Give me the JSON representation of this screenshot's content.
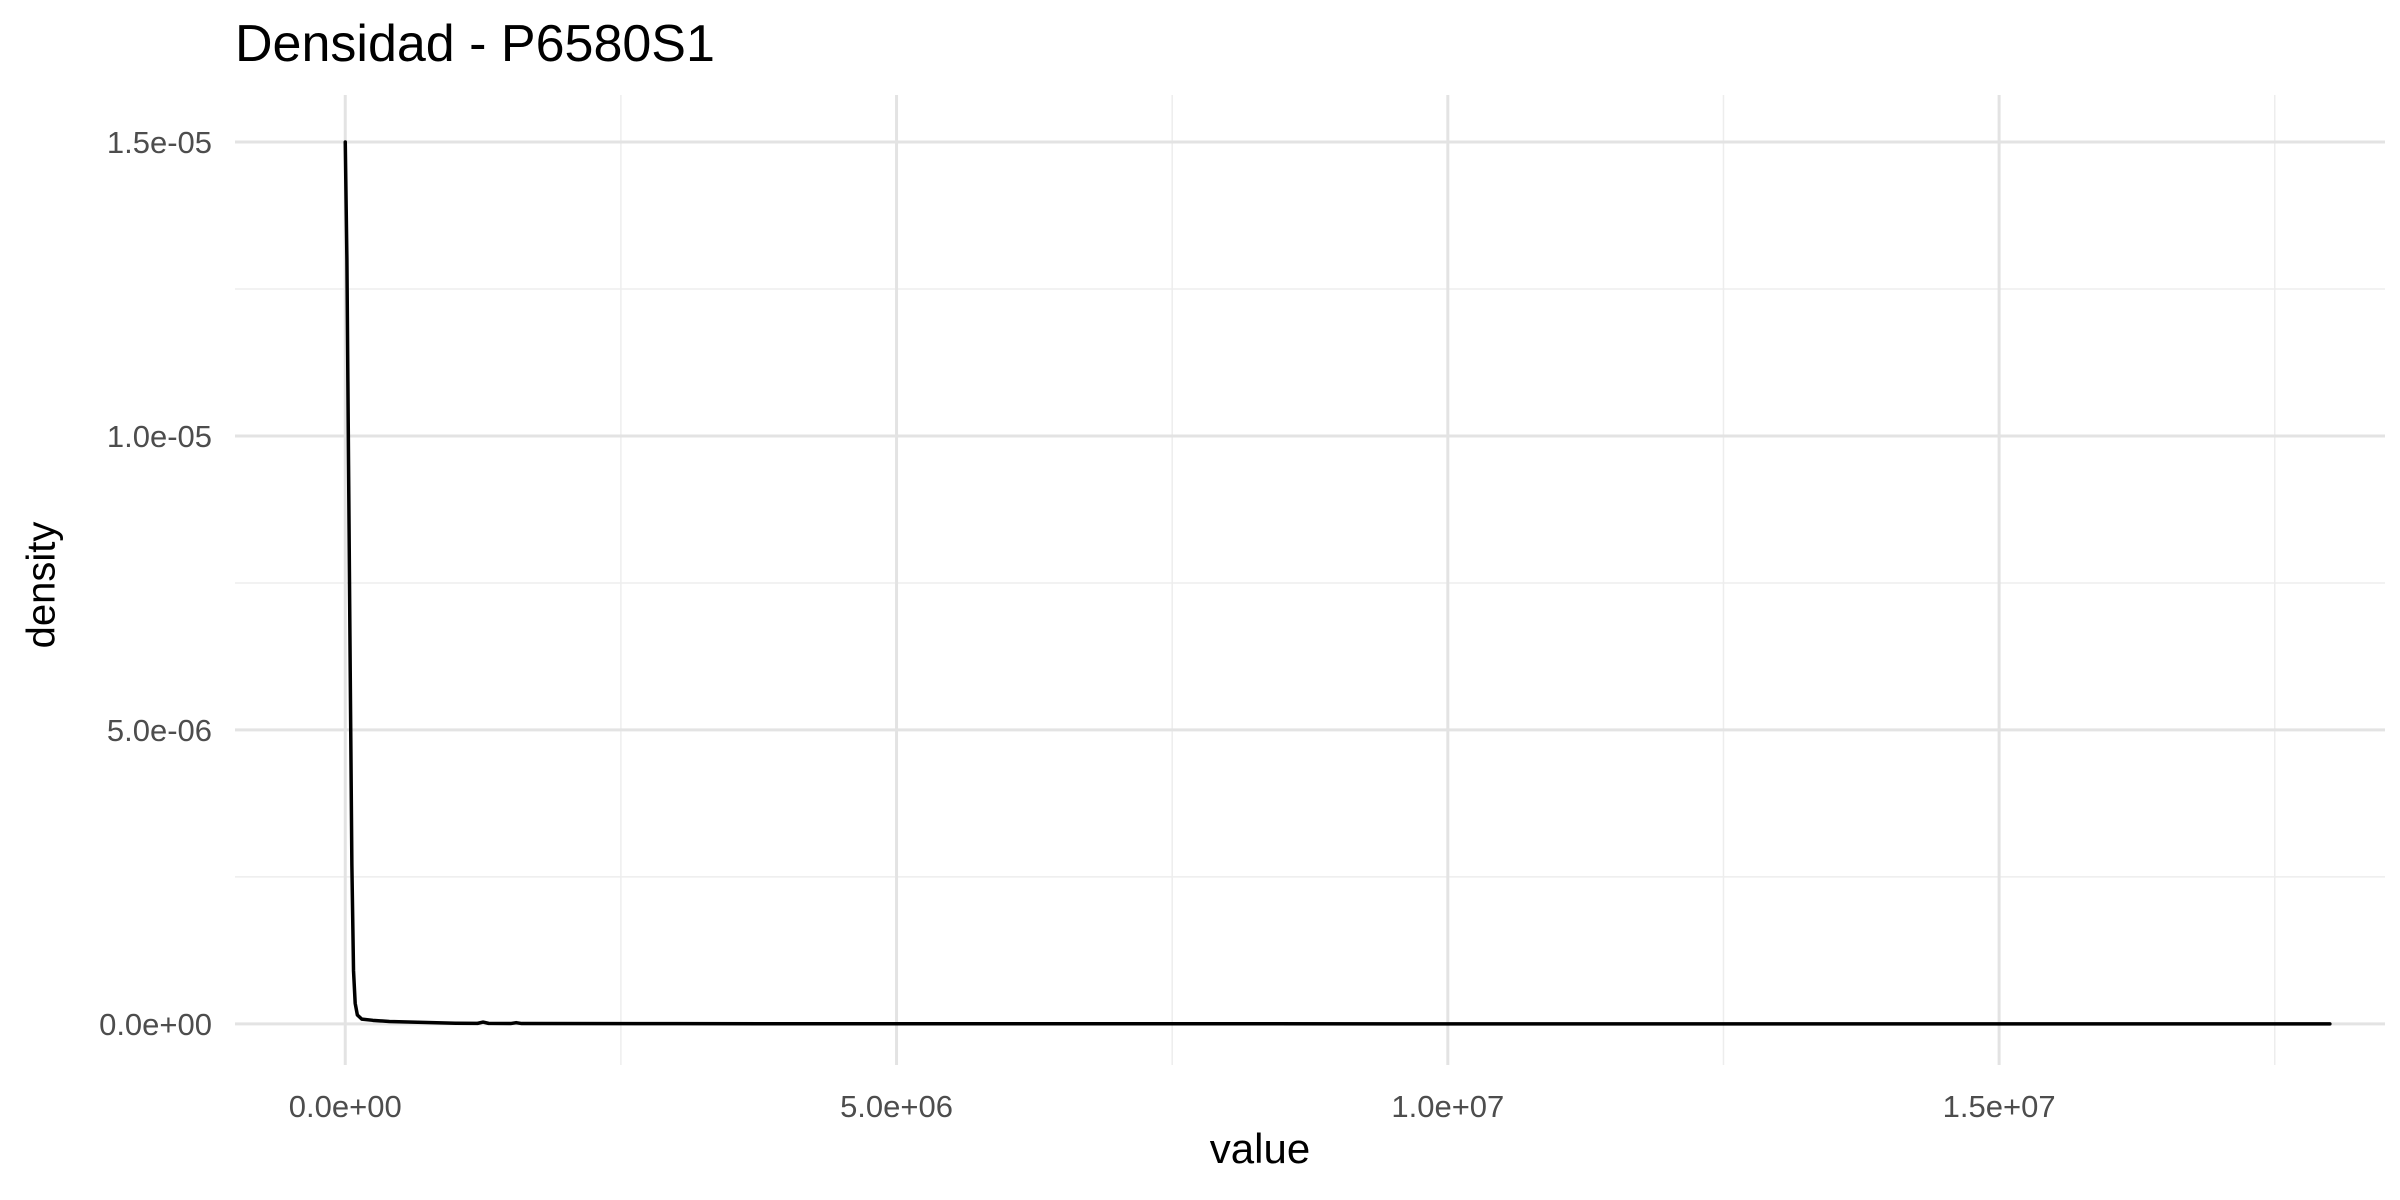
{
  "chart_data": {
    "type": "line",
    "title": "Densidad - P6580S1",
    "xlabel": "value",
    "ylabel": "density",
    "xlim": [
      -1000000,
      18500000
    ],
    "ylim": [
      -700000,
      15800000
    ],
    "x_ticks": [
      0,
      5000000,
      10000000,
      15000000
    ],
    "x_tick_labels": [
      "0.0e+00",
      "5.0e+06",
      "1.0e+07",
      "1.5e+07"
    ],
    "x_minor_ticks": [
      2500000,
      7500000,
      12500000,
      17500000
    ],
    "y_ticks": [
      0,
      5000000,
      10000000,
      15000000
    ],
    "y_tick_labels": [
      "0.0e+00",
      "5.0e-06",
      "1.0e-05",
      "1.5e-05"
    ],
    "y_minor_ticks": [
      2500000,
      7500000,
      12500000
    ],
    "y_unit_note": "y values scaled by 1e12",
    "grid": true,
    "series": [
      {
        "color": "#000000",
        "x": [
          0,
          15000,
          30000,
          45000,
          60000,
          75000,
          90000,
          110000,
          150000,
          250000,
          400000,
          700000,
          1000000,
          1200000,
          1250000,
          1300000,
          1500000,
          1550000,
          1600000,
          3000000,
          6000000,
          10000000,
          15000000,
          18000000
        ],
        "y": [
          15000000,
          13000000,
          9500000,
          6000000,
          2700000,
          900000,
          350000,
          150000,
          80000,
          60000,
          40000,
          25000,
          10000,
          8000,
          30000,
          8000,
          5000,
          20000,
          5000,
          3000,
          1000,
          500,
          200,
          0
        ]
      }
    ]
  }
}
